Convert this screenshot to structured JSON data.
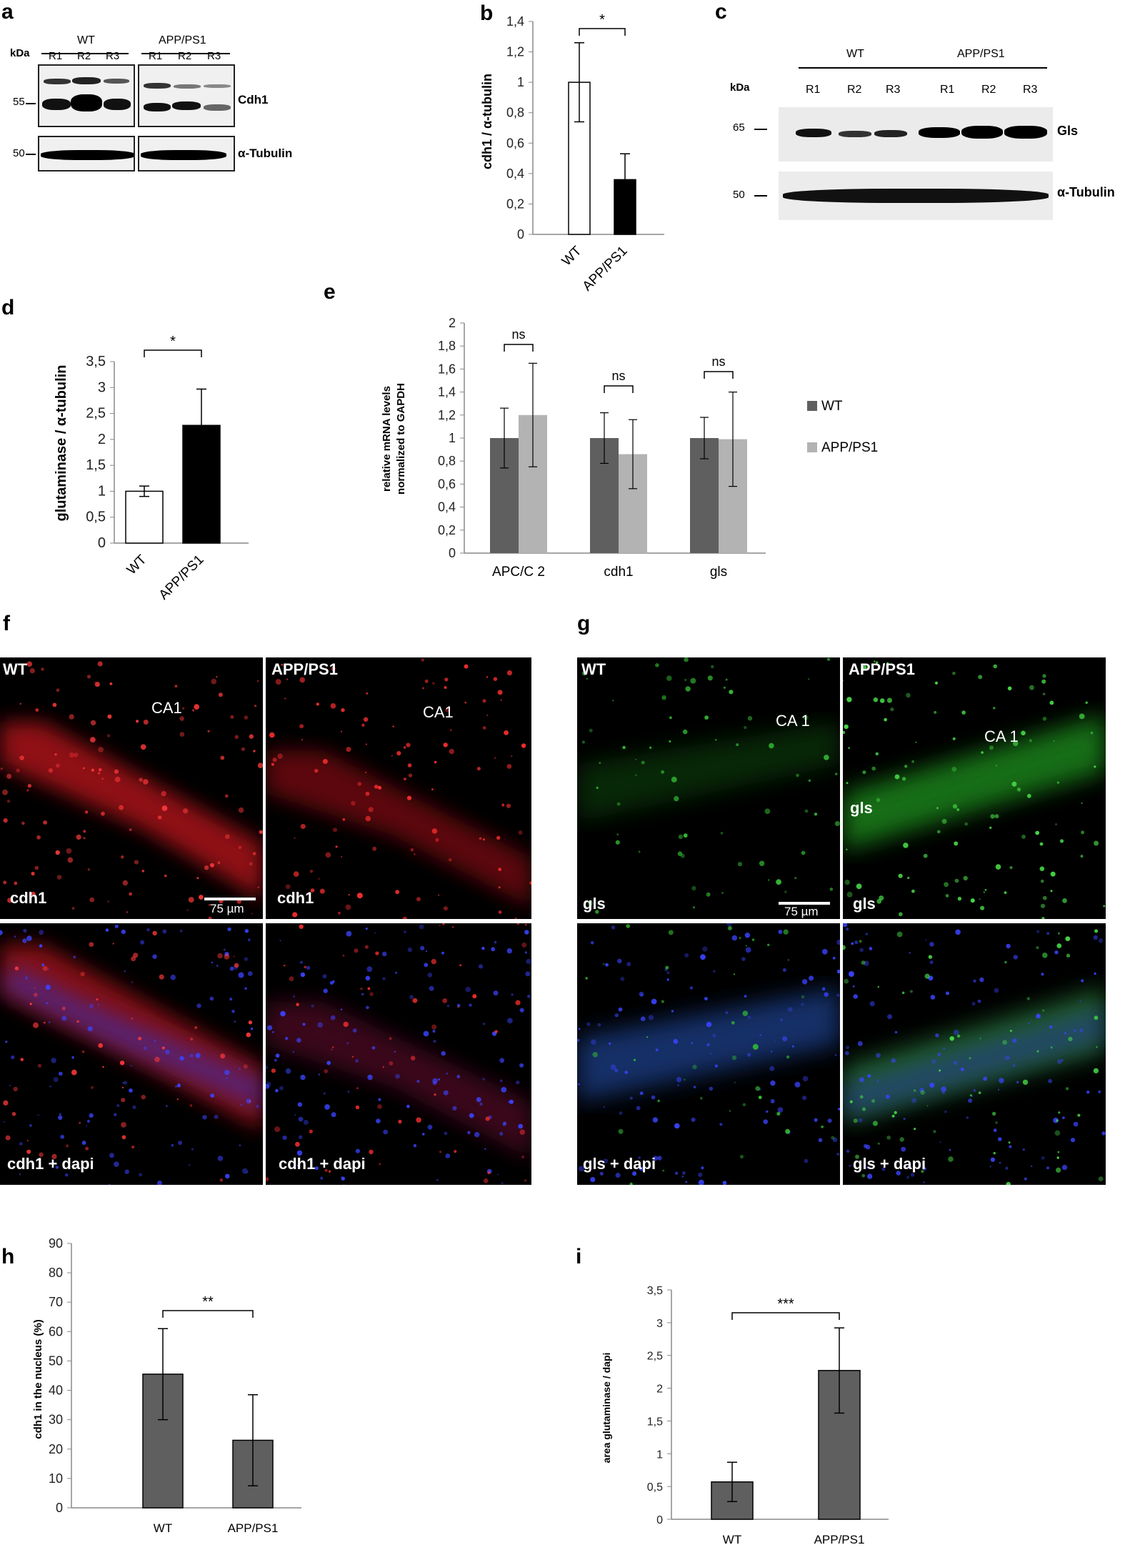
{
  "panels": {
    "a": {
      "letter": "a",
      "kda_label": "kDa",
      "group1": "WT",
      "group2": "APP/PS1",
      "lanes": [
        "R1",
        "R2",
        "R3",
        "R1",
        "R2",
        "R3"
      ],
      "marker_top": "55",
      "marker_bottom": "50",
      "protein_top": "Cdh1",
      "protein_bottom": "α-Tubulin"
    },
    "c": {
      "letter": "c",
      "kda_label": "kDa",
      "group1": "WT",
      "group2": "APP/PS1",
      "lanes": [
        "R1",
        "R2",
        "R3",
        "R1",
        "R2",
        "R3"
      ],
      "marker_top": "65",
      "marker_bottom": "50",
      "protein_top": "Gls",
      "protein_bottom": "α-Tubulin"
    },
    "f": {
      "letter": "f",
      "labels": {
        "wt": "WT",
        "app": "APP/PS1",
        "ca1_left": "CA1",
        "ca1_right": "CA1",
        "cdh1_a": "cdh1",
        "cdh1_b": "cdh1",
        "merge_a": "cdh1 + dapi",
        "merge_b": "cdh1 + dapi",
        "scale": "75 µm"
      }
    },
    "g": {
      "letter": "g",
      "labels": {
        "wt": "WT",
        "app": "APP/PS1",
        "ca1_left": "CA 1",
        "ca1_right": "CA 1",
        "gls_inset": "gls",
        "gls_a": "gls",
        "gls_b": "gls",
        "merge_a": "gls + dapi",
        "merge_b": "gls + dapi",
        "scale": "75 µm"
      }
    }
  },
  "colors": {
    "wt_bar": "#ffffff",
    "app_bar": "#000000",
    "e_wt": "#5f5f5f",
    "e_app": "#b3b3b3",
    "hi_bar": "#5f5f5f",
    "cdh1_red": "#e0202a",
    "gls_green": "#2fb52f",
    "dapi_blue": "#2a30d8"
  },
  "chart_data": [
    {
      "id": "b",
      "letter": "b",
      "type": "bar",
      "categories": [
        "WT",
        "APP/PS1"
      ],
      "values": [
        1.0,
        0.36
      ],
      "errors": [
        0.26,
        0.17
      ],
      "ylabel": "cdh1 / α-tubulin",
      "ylim": [
        0,
        1.4
      ],
      "yticks": [
        "0",
        "0,2",
        "0,4",
        "0,6",
        "0,8",
        "1",
        "1,2",
        "1,4"
      ],
      "significance": "*",
      "grid": false
    },
    {
      "id": "d",
      "letter": "d",
      "type": "bar",
      "categories": [
        "WT",
        "APP/PS1"
      ],
      "values": [
        1.0,
        2.27
      ],
      "errors": [
        0.1,
        0.7
      ],
      "ylabel": "glutaminase / α-tubulin",
      "ylim": [
        0,
        3.5
      ],
      "yticks": [
        "0",
        "0,5",
        "1",
        "1,5",
        "2",
        "2,5",
        "3",
        "3,5"
      ],
      "significance": "*",
      "grid": false
    },
    {
      "id": "e",
      "letter": "e",
      "type": "bar",
      "categories": [
        "APC/C 2",
        "cdh1",
        "gls"
      ],
      "series": [
        {
          "name": "WT",
          "values": [
            1.0,
            1.0,
            1.0
          ],
          "errors": [
            0.26,
            0.22,
            0.18
          ]
        },
        {
          "name": "APP/PS1",
          "values": [
            1.2,
            0.86,
            0.99
          ],
          "errors": [
            0.45,
            0.3,
            0.41
          ]
        }
      ],
      "ylabel_line1": "relative mRNA levels",
      "ylabel_line2": "normalized to GAPDH",
      "ylim": [
        0,
        2
      ],
      "yticks": [
        "0",
        "0,2",
        "0,4",
        "0,6",
        "0,8",
        "1",
        "1,2",
        "1,4",
        "1,6",
        "1,8",
        "2"
      ],
      "significance": [
        "ns",
        "ns",
        "ns"
      ],
      "legend": "right",
      "grid": false
    },
    {
      "id": "h",
      "letter": "h",
      "type": "bar",
      "categories": [
        "WT",
        "APP/PS1"
      ],
      "values": [
        45.5,
        23.0
      ],
      "errors": [
        15.5,
        15.5
      ],
      "ylabel": "cdh1 in the nucleus (%)",
      "ylim": [
        0,
        90
      ],
      "yticks": [
        "0",
        "10",
        "20",
        "30",
        "40",
        "50",
        "60",
        "70",
        "80",
        "90"
      ],
      "significance": "**",
      "grid": false
    },
    {
      "id": "i",
      "letter": "i",
      "type": "bar",
      "categories": [
        "WT",
        "APP/PS1"
      ],
      "values": [
        0.57,
        2.27
      ],
      "errors": [
        0.3,
        0.65
      ],
      "ylabel": "area glutaminase / dapi",
      "ylim": [
        0,
        3.5
      ],
      "yticks": [
        "0",
        "0,5",
        "1",
        "1,5",
        "2",
        "2,5",
        "3",
        "3,5"
      ],
      "significance": "***",
      "grid": false
    }
  ]
}
